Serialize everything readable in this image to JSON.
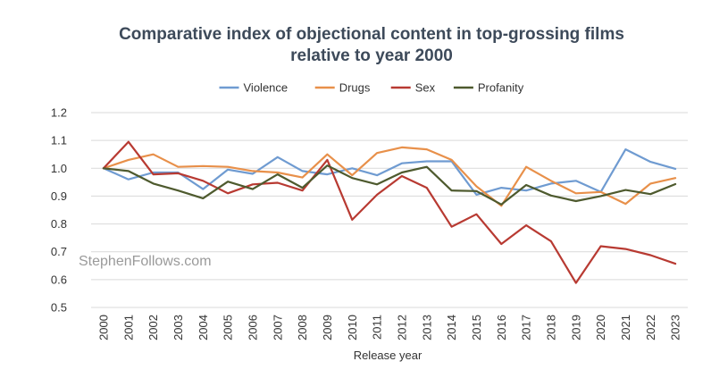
{
  "chart_data": {
    "type": "line",
    "title_line1": "Comparative index of objectional content in top-grossing films",
    "title_line2": "relative to year 2000",
    "xlabel": "Release year",
    "ylabel": "",
    "ylim": [
      0.5,
      1.2
    ],
    "yticks": [
      "0.5",
      "0.6",
      "0.7",
      "0.8",
      "0.9",
      "1.0",
      "1.1",
      "1.2"
    ],
    "categories": [
      "2000",
      "2001",
      "2002",
      "2003",
      "2004",
      "2005",
      "2006",
      "2007",
      "2008",
      "2009",
      "2010",
      "2011",
      "2012",
      "2013",
      "2014",
      "2015",
      "2016",
      "2017",
      "2018",
      "2019",
      "2020",
      "2021",
      "2022",
      "2023"
    ],
    "legend_position": "top",
    "grid": true,
    "watermark": "StephenFollows.com",
    "series": [
      {
        "name": "Violence",
        "color": "#6f9bd1",
        "values": [
          1.0,
          0.96,
          0.985,
          0.985,
          0.925,
          0.995,
          0.98,
          1.04,
          0.99,
          0.978,
          1.0,
          0.975,
          1.018,
          1.025,
          1.025,
          0.905,
          0.93,
          0.92,
          0.945,
          0.955,
          0.915,
          1.068,
          1.023,
          0.998
        ]
      },
      {
        "name": "Drugs",
        "color": "#e8904a",
        "values": [
          1.0,
          1.03,
          1.05,
          1.005,
          1.008,
          1.005,
          0.99,
          0.985,
          0.967,
          1.05,
          0.975,
          1.055,
          1.075,
          1.068,
          1.03,
          0.935,
          0.865,
          1.005,
          0.955,
          0.91,
          0.915,
          0.872,
          0.945,
          0.965
        ]
      },
      {
        "name": "Sex",
        "color": "#b83a32",
        "values": [
          1.0,
          1.095,
          0.978,
          0.982,
          0.955,
          0.91,
          0.942,
          0.948,
          0.92,
          1.03,
          0.815,
          0.905,
          0.972,
          0.93,
          0.79,
          0.835,
          0.728,
          0.795,
          0.738,
          0.588,
          0.72,
          0.71,
          0.688,
          0.657
        ]
      },
      {
        "name": "Profanity",
        "color": "#4e5a2e",
        "values": [
          1.0,
          0.99,
          0.945,
          0.92,
          0.892,
          0.952,
          0.925,
          0.978,
          0.93,
          1.01,
          0.965,
          0.942,
          0.985,
          1.005,
          0.92,
          0.918,
          0.87,
          0.94,
          0.902,
          0.882,
          0.9,
          0.922,
          0.907,
          0.943
        ]
      }
    ]
  }
}
